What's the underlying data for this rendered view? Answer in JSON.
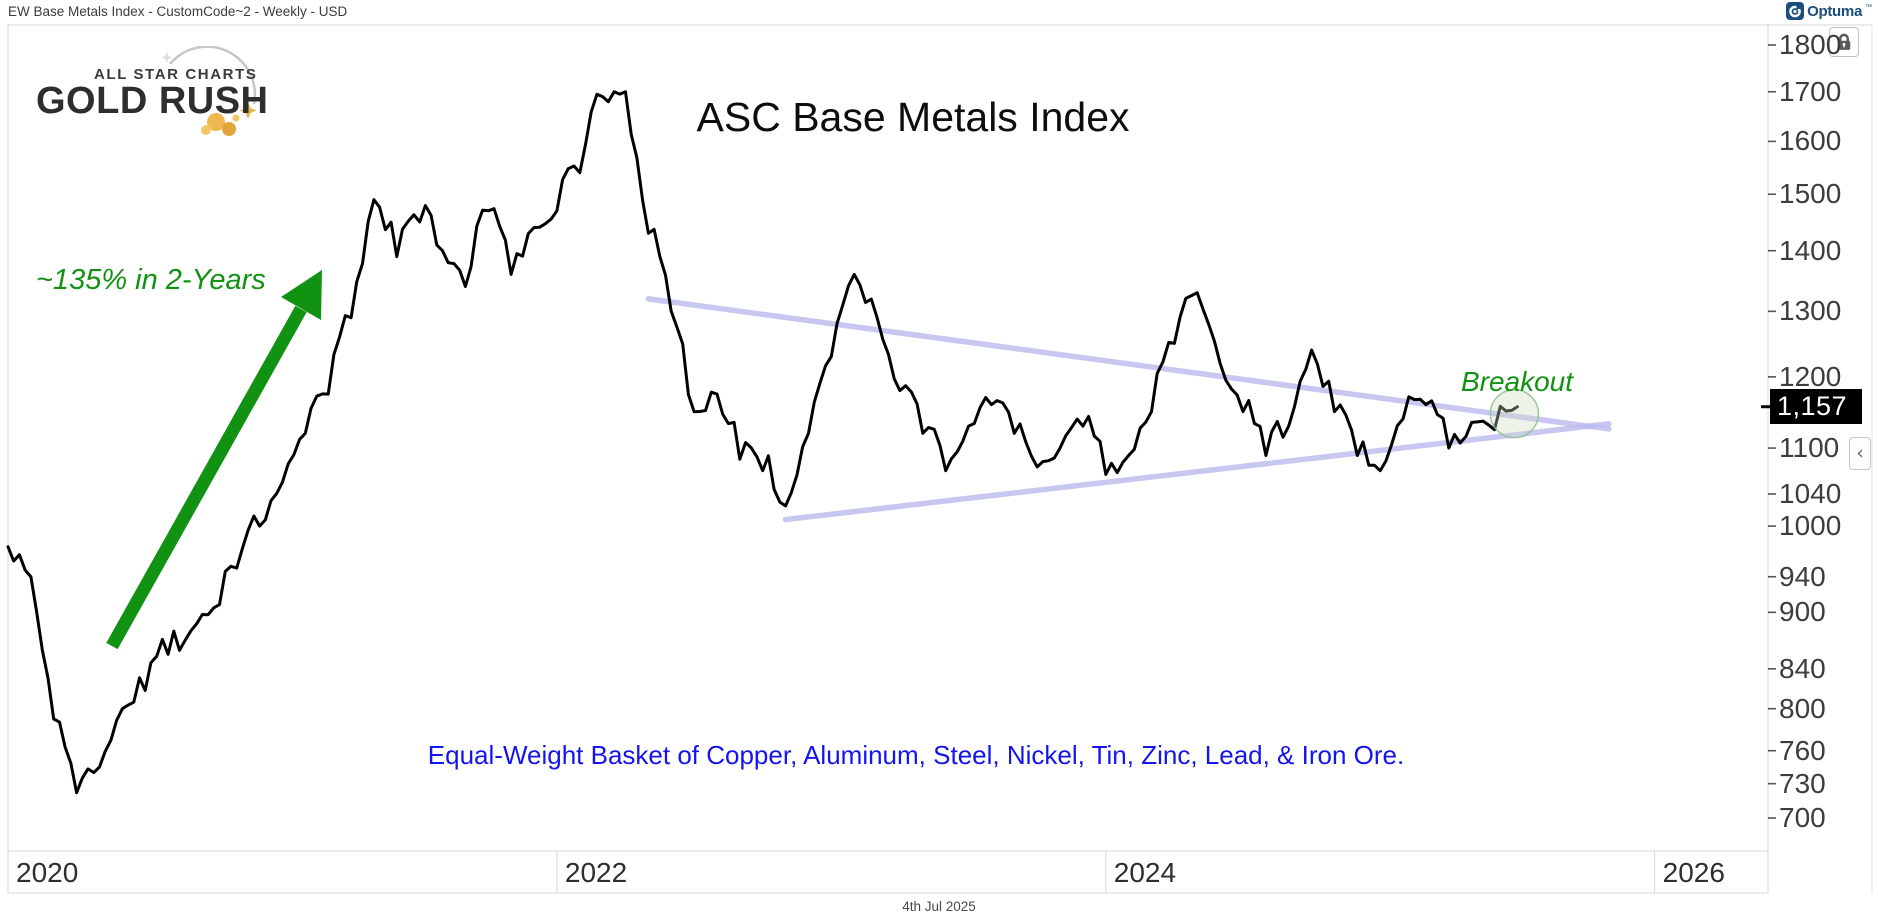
{
  "window": {
    "title": "EW Base Metals Index - CustomCode~2 - Weekly - USD",
    "brand": "Optuma",
    "brand_mark": "™"
  },
  "branding": {
    "logo_line1": "ALL STAR CHARTS",
    "logo_line2": "GOLD RUSH"
  },
  "annotations": {
    "gain_label": "~135% in 2-Years",
    "breakout_label": "Breakout",
    "basket_note": "Equal-Weight Basket of Copper, Aluminum, Steel, Nickel, Tin, Zinc, Lead, & Iron Ore."
  },
  "price_badge": "1,157",
  "footer_date": "4th Jul 2025",
  "controls": {
    "collapse_glyph": "‹"
  },
  "colors": {
    "accent_green": "#129212",
    "note_blue": "#1414ee",
    "trendline_lavender": "#b9b9ef",
    "price_line": "#000000",
    "badge_bg": "#000000",
    "badge_text": "#ffffff",
    "brand_navy": "#1c4e7d",
    "axis_text": "#3d3d3d",
    "grid_gray": "#d7d7d7"
  },
  "chart_data": {
    "type": "line",
    "title": "ASC Base Metals Index",
    "subtitle": "EW Base Metals Index - CustomCode~2 - Weekly - USD",
    "y_axis": {
      "scale": "log",
      "ticks": [
        1800,
        1700,
        1600,
        1500,
        1400,
        1300,
        1200,
        1100,
        1040,
        1000,
        940,
        900,
        840,
        800,
        760,
        730,
        700
      ],
      "range": [
        690,
        1830
      ],
      "side": "right"
    },
    "x_axis": {
      "labels": [
        "2020",
        "2022",
        "2024",
        "2026"
      ],
      "range": [
        "2020-01",
        "2026-06"
      ]
    },
    "grid": false,
    "last_price": 1157,
    "series": [
      {
        "name": "EW Base Metals Index",
        "points": [
          [
            "2020-01",
            975
          ],
          [
            "2020-02",
            940
          ],
          [
            "2020-03",
            790
          ],
          [
            "2020-04",
            722
          ],
          [
            "2020-05",
            745
          ],
          [
            "2020-06",
            800
          ],
          [
            "2020-07",
            818
          ],
          [
            "2020-08",
            855
          ],
          [
            "2020-09",
            880
          ],
          [
            "2020-10",
            905
          ],
          [
            "2020-11",
            950
          ],
          [
            "2020-12",
            1000
          ],
          [
            "2021-01",
            1055
          ],
          [
            "2021-02",
            1120
          ],
          [
            "2021-03",
            1175
          ],
          [
            "2021-04",
            1290
          ],
          [
            "2021-05",
            1490
          ],
          [
            "2021-06",
            1390
          ],
          [
            "2021-07",
            1450
          ],
          [
            "2021-08",
            1400
          ],
          [
            "2021-09",
            1340
          ],
          [
            "2021-10",
            1470
          ],
          [
            "2021-11",
            1360
          ],
          [
            "2021-12",
            1440
          ],
          [
            "2022-01",
            1470
          ],
          [
            "2022-02",
            1540
          ],
          [
            "2022-03",
            1690
          ],
          [
            "2022-04",
            1700
          ],
          [
            "2022-05",
            1430
          ],
          [
            "2022-06",
            1300
          ],
          [
            "2022-07",
            1150
          ],
          [
            "2022-08",
            1175
          ],
          [
            "2022-09",
            1085
          ],
          [
            "2022-10",
            1070
          ],
          [
            "2022-11",
            1025
          ],
          [
            "2022-12",
            1120
          ],
          [
            "2023-01",
            1230
          ],
          [
            "2023-02",
            1360
          ],
          [
            "2023-03",
            1290
          ],
          [
            "2023-04",
            1180
          ],
          [
            "2023-05",
            1120
          ],
          [
            "2023-06",
            1070
          ],
          [
            "2023-07",
            1130
          ],
          [
            "2023-08",
            1160
          ],
          [
            "2023-09",
            1120
          ],
          [
            "2023-10",
            1075
          ],
          [
            "2023-11",
            1100
          ],
          [
            "2023-12",
            1130
          ],
          [
            "2024-01",
            1065
          ],
          [
            "2024-02",
            1090
          ],
          [
            "2024-03",
            1150
          ],
          [
            "2024-04",
            1250
          ],
          [
            "2024-05",
            1330
          ],
          [
            "2024-06",
            1220
          ],
          [
            "2024-07",
            1150
          ],
          [
            "2024-08",
            1090
          ],
          [
            "2024-09",
            1130
          ],
          [
            "2024-10",
            1240
          ],
          [
            "2024-11",
            1150
          ],
          [
            "2024-12",
            1090
          ],
          [
            "2025-01",
            1070
          ],
          [
            "2025-02",
            1140
          ],
          [
            "2025-03",
            1160
          ],
          [
            "2025-04",
            1100
          ],
          [
            "2025-05",
            1135
          ],
          [
            "2025-06",
            1125
          ],
          [
            "2025-07",
            1157
          ]
        ]
      }
    ],
    "trendlines": [
      {
        "name": "upper-triangle-line",
        "from": [
          "2022-05",
          1320
        ],
        "to": [
          "2025-11",
          1126
        ]
      },
      {
        "name": "lower-triangle-line",
        "from": [
          "2022-11",
          1008
        ],
        "to": [
          "2025-11",
          1133
        ]
      }
    ],
    "annotations": {
      "gain_arrow": {
        "label": "~135% in 2-Years",
        "from_value": 722,
        "to_value": 1700
      },
      "breakout_circle_at": [
        "2025-07",
        1157
      ]
    }
  }
}
